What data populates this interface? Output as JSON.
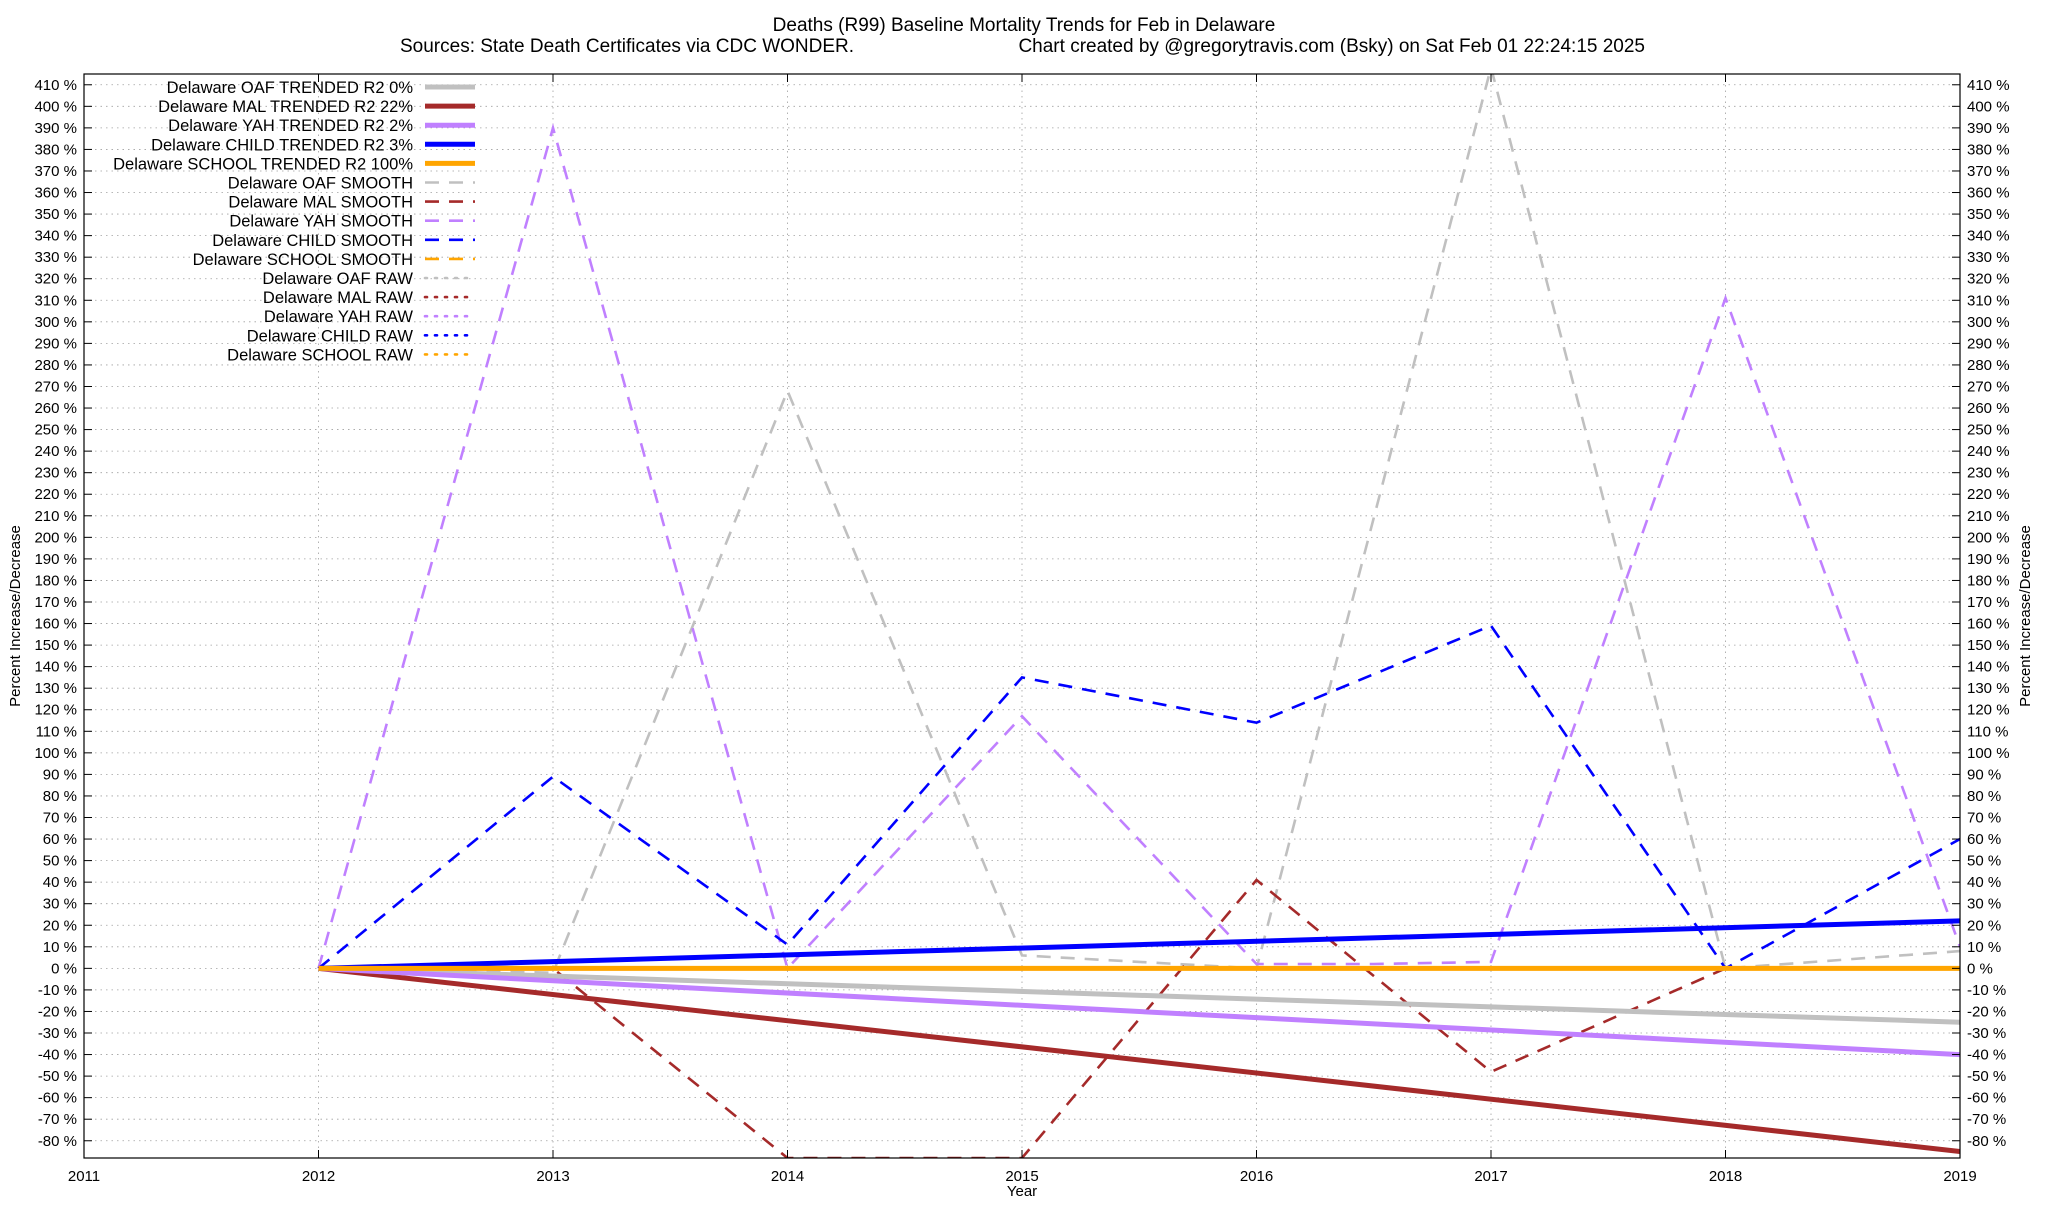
{
  "header": {
    "title": "Deaths (R99)  Baseline Mortality Trends for Feb in Delaware",
    "subtitle_left": "Sources: State Death Certificates via CDC WONDER.",
    "subtitle_right": "Chart created by @gregorytravis.com (Bsky) on Sat Feb 01 22:24:15 2025"
  },
  "chart_data": {
    "type": "line",
    "title": "Deaths (R99)  Baseline Mortality Trends for Feb in Delaware",
    "xlabel": "Year",
    "ylabel": "Percent Increase/Decrease",
    "y2label": "Percent Increase/Decrease",
    "xlim": [
      2011,
      2019
    ],
    "ylim": [
      -88,
      415
    ],
    "x_ticks": [
      2011,
      2012,
      2013,
      2014,
      2015,
      2016,
      2017,
      2018,
      2019
    ],
    "y_ticks": [
      -80,
      -70,
      -60,
      -50,
      -40,
      -30,
      -20,
      -10,
      0,
      10,
      20,
      30,
      40,
      50,
      60,
      70,
      80,
      90,
      100,
      110,
      120,
      130,
      140,
      150,
      160,
      170,
      180,
      190,
      200,
      210,
      220,
      230,
      240,
      250,
      260,
      270,
      280,
      290,
      300,
      310,
      320,
      330,
      340,
      350,
      360,
      370,
      380,
      390,
      400,
      410
    ],
    "y_tick_suffix": " %",
    "grid": true,
    "legend_position": "top-left",
    "colors": {
      "OAF": "#c0c0c0",
      "MAL": "#a52a2a",
      "YAH": "#c080ff",
      "CHILD": "#0000ff",
      "SCHOOL": "#ffa500"
    },
    "series": [
      {
        "name": "Delaware OAF TRENDED R2  0%",
        "group": "OAF",
        "style": "trended",
        "x": [
          2012,
          2019
        ],
        "y": [
          0,
          -25
        ]
      },
      {
        "name": "Delaware MAL TRENDED R2  22%",
        "group": "MAL",
        "style": "trended",
        "x": [
          2012,
          2019
        ],
        "y": [
          0,
          -85
        ]
      },
      {
        "name": "Delaware YAH TRENDED R2  2%",
        "group": "YAH",
        "style": "trended",
        "x": [
          2012,
          2019
        ],
        "y": [
          0,
          -40
        ]
      },
      {
        "name": "Delaware CHILD TRENDED R2  3%",
        "group": "CHILD",
        "style": "trended",
        "x": [
          2012,
          2019
        ],
        "y": [
          0,
          22
        ]
      },
      {
        "name": "Delaware SCHOOL TRENDED R2 100%",
        "group": "SCHOOL",
        "style": "trended",
        "x": [
          2012,
          2019
        ],
        "y": [
          0,
          0
        ]
      },
      {
        "name": "Delaware OAF SMOOTH",
        "group": "OAF",
        "style": "smooth",
        "x": [
          2012,
          2013,
          2014,
          2015,
          2016,
          2017,
          2018,
          2019
        ],
        "y": [
          0,
          -2,
          268,
          6,
          0,
          418,
          0,
          8
        ]
      },
      {
        "name": "Delaware MAL SMOOTH",
        "group": "MAL",
        "style": "smooth",
        "x": [
          2012,
          2013,
          2014,
          2015,
          2016,
          2017,
          2018
        ],
        "y": [
          0,
          0,
          -88,
          -88,
          41,
          -48,
          0
        ]
      },
      {
        "name": "Delaware YAH SMOOTH",
        "group": "YAH",
        "style": "smooth",
        "x": [
          2012,
          2013,
          2014,
          2015,
          2016,
          2016.5,
          2017,
          2018,
          2019
        ],
        "y": [
          0,
          390,
          0,
          117,
          2,
          2,
          3,
          311,
          10
        ]
      },
      {
        "name": "Delaware CHILD SMOOTH",
        "group": "CHILD",
        "style": "smooth",
        "x": [
          2012,
          2013,
          2014,
          2015,
          2016,
          2017,
          2018,
          2019
        ],
        "y": [
          0,
          89,
          11,
          135,
          114,
          159,
          0,
          60
        ]
      },
      {
        "name": "Delaware SCHOOL SMOOTH",
        "group": "SCHOOL",
        "style": "smooth",
        "x": [
          2012,
          2019
        ],
        "y": [
          0,
          0
        ]
      },
      {
        "name": "Delaware OAF RAW",
        "group": "OAF",
        "style": "raw",
        "x": [],
        "y": []
      },
      {
        "name": "Delaware MAL RAW",
        "group": "MAL",
        "style": "raw",
        "x": [],
        "y": []
      },
      {
        "name": "Delaware YAH RAW",
        "group": "YAH",
        "style": "raw",
        "x": [],
        "y": []
      },
      {
        "name": "Delaware CHILD RAW",
        "group": "CHILD",
        "style": "raw",
        "x": [],
        "y": []
      },
      {
        "name": "Delaware SCHOOL RAW",
        "group": "SCHOOL",
        "style": "raw",
        "x": [],
        "y": []
      }
    ]
  }
}
